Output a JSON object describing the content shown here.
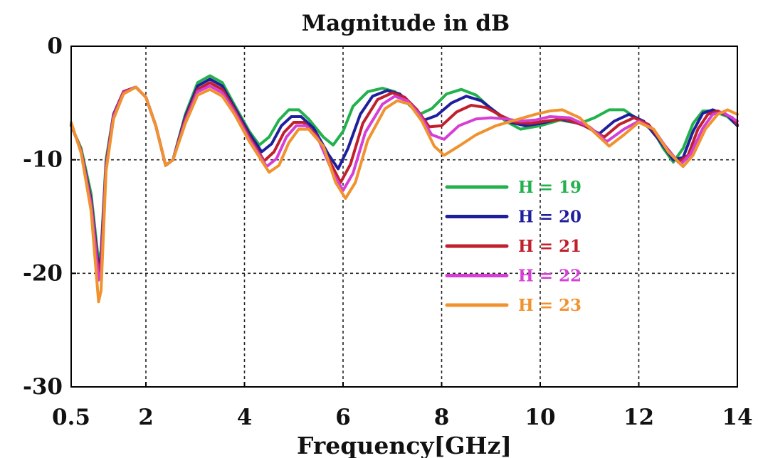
{
  "chart_data": {
    "type": "line",
    "title": "Magnitude in dB",
    "xlabel": "Frequency[GHz]",
    "ylabel": "",
    "xlim": [
      0.5,
      14
    ],
    "ylim": [
      -30,
      0
    ],
    "x_ticks": [
      0.5,
      2,
      4,
      6,
      8,
      10,
      12,
      14
    ],
    "x_tick_labels": [
      "0.5",
      "2",
      "4",
      "6",
      "8",
      "10",
      "12",
      "14"
    ],
    "y_ticks": [
      0,
      -10,
      -20,
      -30
    ],
    "y_tick_labels": [
      "0",
      "-10",
      "-20",
      "-30"
    ],
    "grid": true,
    "legend_position": "center-right",
    "series": [
      {
        "name": "H = 19",
        "color": "#22b14c",
        "points": [
          [
            0.5,
            -7
          ],
          [
            0.7,
            -9
          ],
          [
            0.9,
            -13
          ],
          [
            1.05,
            -19
          ],
          [
            1.1,
            -18
          ],
          [
            1.2,
            -10
          ],
          [
            1.35,
            -6
          ],
          [
            1.55,
            -4
          ],
          [
            1.8,
            -3.6
          ],
          [
            2.0,
            -4.5
          ],
          [
            2.2,
            -7
          ],
          [
            2.4,
            -10.5
          ],
          [
            2.55,
            -10
          ],
          [
            2.8,
            -6
          ],
          [
            3.05,
            -3.2
          ],
          [
            3.3,
            -2.6
          ],
          [
            3.55,
            -3.2
          ],
          [
            3.8,
            -5.2
          ],
          [
            4.1,
            -7.5
          ],
          [
            4.3,
            -8.7
          ],
          [
            4.5,
            -8
          ],
          [
            4.7,
            -6.5
          ],
          [
            4.9,
            -5.6
          ],
          [
            5.1,
            -5.6
          ],
          [
            5.3,
            -6.4
          ],
          [
            5.6,
            -8
          ],
          [
            5.8,
            -8.7
          ],
          [
            6.0,
            -7.5
          ],
          [
            6.2,
            -5.3
          ],
          [
            6.5,
            -4
          ],
          [
            6.8,
            -3.7
          ],
          [
            7.05,
            -4
          ],
          [
            7.3,
            -5
          ],
          [
            7.55,
            -6
          ],
          [
            7.8,
            -5.5
          ],
          [
            8.1,
            -4.2
          ],
          [
            8.4,
            -3.8
          ],
          [
            8.7,
            -4.3
          ],
          [
            9.0,
            -5.5
          ],
          [
            9.3,
            -6.6
          ],
          [
            9.6,
            -7.3
          ],
          [
            10.0,
            -7
          ],
          [
            10.4,
            -6.5
          ],
          [
            10.8,
            -6.8
          ],
          [
            11.1,
            -6.3
          ],
          [
            11.4,
            -5.6
          ],
          [
            11.7,
            -5.6
          ],
          [
            12.0,
            -6.5
          ],
          [
            12.3,
            -7.5
          ],
          [
            12.5,
            -9
          ],
          [
            12.7,
            -10.2
          ],
          [
            12.9,
            -9
          ],
          [
            13.1,
            -6.8
          ],
          [
            13.3,
            -5.7
          ],
          [
            13.5,
            -5.7
          ],
          [
            13.8,
            -6.2
          ],
          [
            14.0,
            -7
          ]
        ]
      },
      {
        "name": "H = 20",
        "color": "#1f1f9e",
        "points": [
          [
            0.5,
            -6.9
          ],
          [
            0.7,
            -9.2
          ],
          [
            0.9,
            -13.5
          ],
          [
            1.05,
            -19.6
          ],
          [
            1.1,
            -18.5
          ],
          [
            1.2,
            -10.4
          ],
          [
            1.35,
            -6
          ],
          [
            1.55,
            -4
          ],
          [
            1.8,
            -3.6
          ],
          [
            2.0,
            -4.5
          ],
          [
            2.2,
            -7
          ],
          [
            2.4,
            -10.5
          ],
          [
            2.55,
            -10
          ],
          [
            2.8,
            -6.2
          ],
          [
            3.05,
            -3.5
          ],
          [
            3.3,
            -2.9
          ],
          [
            3.55,
            -3.5
          ],
          [
            3.8,
            -5.4
          ],
          [
            4.1,
            -7.7
          ],
          [
            4.35,
            -9.3
          ],
          [
            4.55,
            -8.6
          ],
          [
            4.75,
            -7
          ],
          [
            4.95,
            -6.2
          ],
          [
            5.15,
            -6.2
          ],
          [
            5.4,
            -7.2
          ],
          [
            5.7,
            -9.5
          ],
          [
            5.9,
            -10.8
          ],
          [
            6.1,
            -9
          ],
          [
            6.35,
            -6
          ],
          [
            6.6,
            -4.4
          ],
          [
            6.9,
            -3.9
          ],
          [
            7.15,
            -4.2
          ],
          [
            7.4,
            -5.2
          ],
          [
            7.65,
            -6.5
          ],
          [
            7.9,
            -6.1
          ],
          [
            8.2,
            -5
          ],
          [
            8.5,
            -4.4
          ],
          [
            8.8,
            -4.8
          ],
          [
            9.1,
            -5.8
          ],
          [
            9.4,
            -6.7
          ],
          [
            9.7,
            -7
          ],
          [
            10.0,
            -6.8
          ],
          [
            10.4,
            -6.4
          ],
          [
            10.8,
            -6.8
          ],
          [
            11.2,
            -7.7
          ],
          [
            11.5,
            -6.6
          ],
          [
            11.8,
            -6
          ],
          [
            12.1,
            -6.6
          ],
          [
            12.4,
            -8.2
          ],
          [
            12.7,
            -10
          ],
          [
            12.9,
            -9.8
          ],
          [
            13.1,
            -7.5
          ],
          [
            13.3,
            -5.9
          ],
          [
            13.5,
            -5.6
          ],
          [
            13.8,
            -6.1
          ],
          [
            14.0,
            -7
          ]
        ]
      },
      {
        "name": "H = 21",
        "color": "#c0202c",
        "points": [
          [
            0.5,
            -6.9
          ],
          [
            0.7,
            -9.2
          ],
          [
            0.9,
            -13.8
          ],
          [
            1.05,
            -20
          ],
          [
            1.1,
            -19
          ],
          [
            1.2,
            -10.5
          ],
          [
            1.35,
            -6.1
          ],
          [
            1.55,
            -4
          ],
          [
            1.8,
            -3.6
          ],
          [
            2.0,
            -4.5
          ],
          [
            2.2,
            -7
          ],
          [
            2.4,
            -10.5
          ],
          [
            2.55,
            -10
          ],
          [
            2.8,
            -6.4
          ],
          [
            3.05,
            -3.8
          ],
          [
            3.3,
            -3.2
          ],
          [
            3.55,
            -3.8
          ],
          [
            3.8,
            -5.6
          ],
          [
            4.1,
            -8
          ],
          [
            4.4,
            -10.1
          ],
          [
            4.6,
            -9.3
          ],
          [
            4.8,
            -7.6
          ],
          [
            5.0,
            -6.7
          ],
          [
            5.2,
            -6.7
          ],
          [
            5.45,
            -7.8
          ],
          [
            5.75,
            -10.3
          ],
          [
            5.95,
            -12
          ],
          [
            6.15,
            -10.4
          ],
          [
            6.4,
            -6.8
          ],
          [
            6.7,
            -4.7
          ],
          [
            7.0,
            -4.1
          ],
          [
            7.25,
            -4.5
          ],
          [
            7.5,
            -5.6
          ],
          [
            7.75,
            -7.1
          ],
          [
            8.0,
            -7
          ],
          [
            8.3,
            -5.8
          ],
          [
            8.6,
            -5.2
          ],
          [
            8.9,
            -5.4
          ],
          [
            9.2,
            -6.1
          ],
          [
            9.5,
            -6.7
          ],
          [
            9.8,
            -6.8
          ],
          [
            10.1,
            -6.6
          ],
          [
            10.5,
            -6.4
          ],
          [
            10.9,
            -7
          ],
          [
            11.3,
            -8
          ],
          [
            11.6,
            -6.9
          ],
          [
            11.9,
            -6.3
          ],
          [
            12.2,
            -6.9
          ],
          [
            12.5,
            -8.6
          ],
          [
            12.8,
            -10.2
          ],
          [
            13.0,
            -9.6
          ],
          [
            13.2,
            -7.3
          ],
          [
            13.4,
            -6
          ],
          [
            13.6,
            -5.7
          ],
          [
            13.9,
            -6.3
          ],
          [
            14.0,
            -6.9
          ]
        ]
      },
      {
        "name": "H = 22",
        "color": "#d63fd6",
        "points": [
          [
            0.5,
            -6.8
          ],
          [
            0.7,
            -9.3
          ],
          [
            0.9,
            -14
          ],
          [
            1.05,
            -20.6
          ],
          [
            1.1,
            -19.8
          ],
          [
            1.2,
            -10.7
          ],
          [
            1.35,
            -6.2
          ],
          [
            1.55,
            -4.1
          ],
          [
            1.8,
            -3.6
          ],
          [
            2.0,
            -4.5
          ],
          [
            2.2,
            -7
          ],
          [
            2.4,
            -10.5
          ],
          [
            2.55,
            -10
          ],
          [
            2.8,
            -6.6
          ],
          [
            3.05,
            -4
          ],
          [
            3.3,
            -3.5
          ],
          [
            3.55,
            -4.1
          ],
          [
            3.8,
            -5.8
          ],
          [
            4.1,
            -8.2
          ],
          [
            4.45,
            -10.6
          ],
          [
            4.65,
            -9.9
          ],
          [
            4.85,
            -8
          ],
          [
            5.05,
            -7
          ],
          [
            5.25,
            -7
          ],
          [
            5.5,
            -8.2
          ],
          [
            5.8,
            -11.2
          ],
          [
            6.0,
            -12.7
          ],
          [
            6.2,
            -11.2
          ],
          [
            6.45,
            -7.6
          ],
          [
            6.8,
            -5.1
          ],
          [
            7.05,
            -4.4
          ],
          [
            7.3,
            -4.8
          ],
          [
            7.55,
            -6
          ],
          [
            7.8,
            -7.8
          ],
          [
            8.05,
            -8.2
          ],
          [
            8.35,
            -7
          ],
          [
            8.7,
            -6.4
          ],
          [
            9.0,
            -6.3
          ],
          [
            9.3,
            -6.4
          ],
          [
            9.6,
            -6.6
          ],
          [
            9.9,
            -6.5
          ],
          [
            10.2,
            -6.2
          ],
          [
            10.6,
            -6.3
          ],
          [
            11.0,
            -7.1
          ],
          [
            11.35,
            -8.4
          ],
          [
            11.7,
            -7.3
          ],
          [
            12.0,
            -6.6
          ],
          [
            12.3,
            -7.3
          ],
          [
            12.6,
            -9.2
          ],
          [
            12.85,
            -10.4
          ],
          [
            13.05,
            -9.5
          ],
          [
            13.3,
            -7.2
          ],
          [
            13.5,
            -6
          ],
          [
            13.7,
            -5.8
          ],
          [
            14.0,
            -6.6
          ]
        ]
      },
      {
        "name": "H = 23",
        "color": "#f0922e",
        "points": [
          [
            0.5,
            -6.7
          ],
          [
            0.7,
            -9.4
          ],
          [
            0.9,
            -14.5
          ],
          [
            1.05,
            -22.5
          ],
          [
            1.1,
            -21.5
          ],
          [
            1.2,
            -11
          ],
          [
            1.35,
            -6.4
          ],
          [
            1.55,
            -4.2
          ],
          [
            1.8,
            -3.6
          ],
          [
            2.0,
            -4.5
          ],
          [
            2.2,
            -7
          ],
          [
            2.4,
            -10.5
          ],
          [
            2.55,
            -10
          ],
          [
            2.8,
            -6.8
          ],
          [
            3.05,
            -4.3
          ],
          [
            3.3,
            -3.8
          ],
          [
            3.55,
            -4.4
          ],
          [
            3.8,
            -6
          ],
          [
            4.1,
            -8.4
          ],
          [
            4.5,
            -11.1
          ],
          [
            4.7,
            -10.5
          ],
          [
            4.9,
            -8.5
          ],
          [
            5.1,
            -7.3
          ],
          [
            5.3,
            -7.3
          ],
          [
            5.6,
            -8.8
          ],
          [
            5.85,
            -12
          ],
          [
            6.05,
            -13.4
          ],
          [
            6.25,
            -12
          ],
          [
            6.5,
            -8.3
          ],
          [
            6.85,
            -5.5
          ],
          [
            7.1,
            -4.8
          ],
          [
            7.35,
            -5.1
          ],
          [
            7.6,
            -6.6
          ],
          [
            7.85,
            -8.8
          ],
          [
            8.05,
            -9.6
          ],
          [
            8.35,
            -8.8
          ],
          [
            8.7,
            -7.8
          ],
          [
            9.1,
            -7
          ],
          [
            9.5,
            -6.5
          ],
          [
            9.9,
            -6
          ],
          [
            10.2,
            -5.7
          ],
          [
            10.45,
            -5.6
          ],
          [
            10.8,
            -6.3
          ],
          [
            11.1,
            -7.6
          ],
          [
            11.4,
            -8.8
          ],
          [
            11.7,
            -7.8
          ],
          [
            12.0,
            -6.7
          ],
          [
            12.3,
            -7.3
          ],
          [
            12.6,
            -9.3
          ],
          [
            12.9,
            -10.6
          ],
          [
            13.1,
            -9.6
          ],
          [
            13.35,
            -7.3
          ],
          [
            13.6,
            -6
          ],
          [
            13.8,
            -5.6
          ],
          [
            14.0,
            -6
          ]
        ]
      }
    ]
  }
}
